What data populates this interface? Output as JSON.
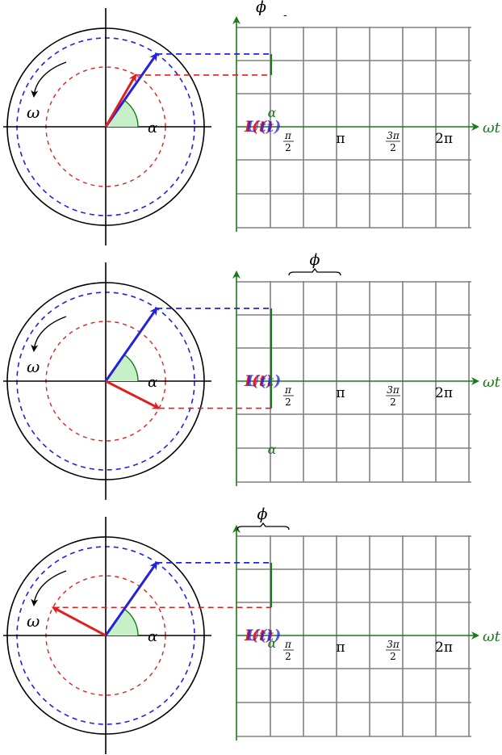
{
  "colors": {
    "grid": "#808080",
    "axis": "#1a7a1a",
    "circle": "#000000",
    "blue": "#2222dd",
    "red": "#e02020",
    "angle_fill": "#c8f0c8"
  },
  "labels": {
    "omega": "ω",
    "alpha": "α",
    "phi": "ϕ",
    "axis_x": "ωt",
    "u_label": "U(t)",
    "i_label": "I(t)",
    "tick_pi": "π",
    "tick_2pi": "2π",
    "half_num_1": "π",
    "half_den": "2",
    "three_half_num": "3π",
    "dash_mark": "-"
  },
  "panels": [
    {
      "id": "panel-1",
      "blue_angle_deg": 55,
      "red_angle_deg": 60,
      "alpha_deg": 55,
      "phi_brace": "none",
      "phi_label_visible": true,
      "alpha_label_position": "above-axis"
    },
    {
      "id": "panel-2",
      "blue_angle_deg": 55,
      "red_angle_deg": -27,
      "alpha_deg": 55,
      "phi_brace": "after",
      "phi_label_visible": true,
      "alpha_label_position": "below-axis"
    },
    {
      "id": "panel-3",
      "blue_angle_deg": 55,
      "red_angle_deg": 152,
      "alpha_deg": 55,
      "phi_brace": "before",
      "phi_label_visible": true,
      "alpha_label_position": "on-axis"
    }
  ]
}
